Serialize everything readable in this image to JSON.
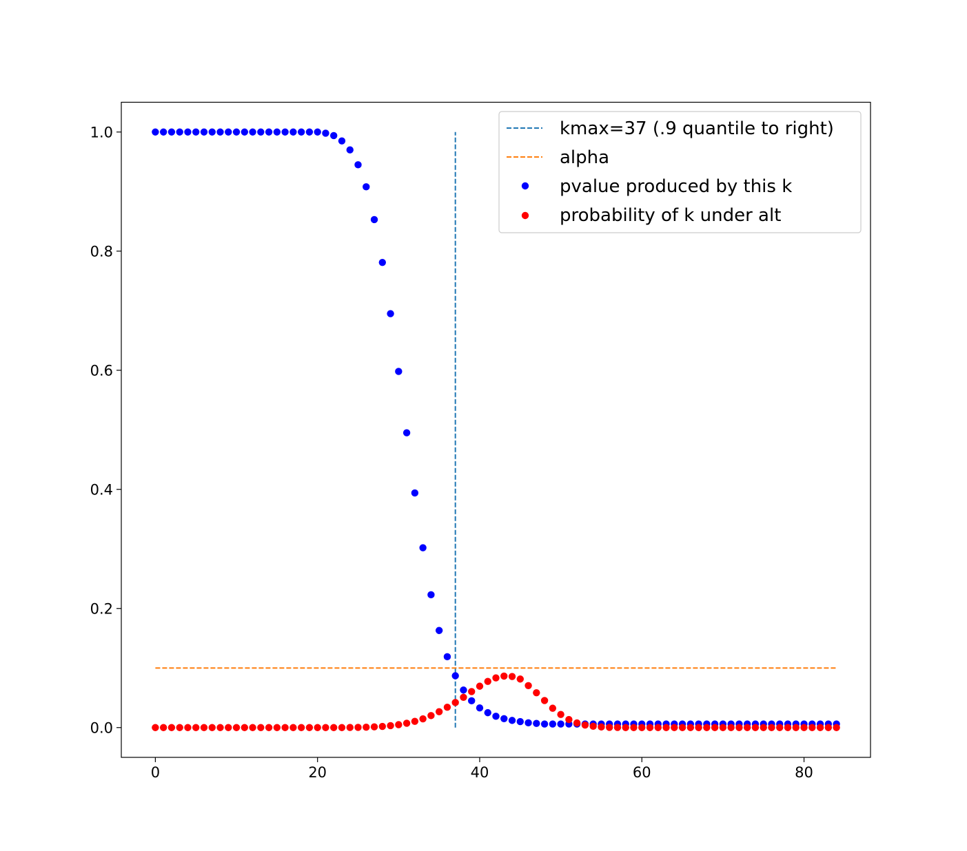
{
  "chart_data": {
    "type": "scatter",
    "title": "",
    "xlabel": "",
    "ylabel": "",
    "xlim": [
      -4.2,
      88.2
    ],
    "ylim": [
      -0.05,
      1.05
    ],
    "x_ticks": [
      0,
      20,
      40,
      60,
      80
    ],
    "x_tick_labels": [
      "0",
      "20",
      "40",
      "60",
      "80"
    ],
    "y_ticks": [
      0.0,
      0.2,
      0.4,
      0.6,
      0.8,
      1.0
    ],
    "y_tick_labels": [
      "0.0",
      "0.2",
      "0.4",
      "0.6",
      "0.8",
      "1.0"
    ],
    "grid": false,
    "legend_position": "upper-right",
    "lines": [
      {
        "name": "kmax=37 (.9 quantile to right)",
        "style": "dashed",
        "color": "#1f77b4",
        "x": [
          37,
          37
        ],
        "y": [
          0.0,
          1.0
        ]
      },
      {
        "name": "alpha",
        "style": "dashed",
        "color": "#ff7f0e",
        "x": [
          0,
          84
        ],
        "y": [
          0.1,
          0.1
        ]
      }
    ],
    "series": [
      {
        "name": "pvalue produced by this k",
        "color": "#0000ff",
        "x": [
          0,
          1,
          2,
          3,
          4,
          5,
          6,
          7,
          8,
          9,
          10,
          11,
          12,
          13,
          14,
          15,
          16,
          17,
          18,
          19,
          20,
          21,
          22,
          23,
          24,
          25,
          26,
          27,
          28,
          29,
          30,
          31,
          32,
          33,
          34,
          35,
          36,
          37,
          38,
          39,
          40,
          41,
          42,
          43,
          44,
          45,
          46,
          47,
          48,
          49,
          50,
          51,
          52,
          53,
          54,
          55,
          56,
          57,
          58,
          59,
          60,
          61,
          62,
          63,
          64,
          65,
          66,
          67,
          68,
          69,
          70,
          71,
          72,
          73,
          74,
          75,
          76,
          77,
          78,
          79,
          80,
          81,
          82,
          83,
          84
        ],
        "y": [
          1.0,
          1.0,
          1.0,
          1.0,
          1.0,
          1.0,
          1.0,
          1.0,
          1.0,
          1.0,
          1.0,
          1.0,
          1.0,
          1.0,
          1.0,
          1.0,
          1.0,
          1.0,
          1.0,
          1.0,
          1.0,
          0.998,
          0.994,
          0.985,
          0.97,
          0.945,
          0.908,
          0.853,
          0.781,
          0.695,
          0.598,
          0.495,
          0.394,
          0.302,
          0.223,
          0.163,
          0.119,
          0.087,
          0.063,
          0.045,
          0.033,
          0.025,
          0.019,
          0.015,
          0.012,
          0.01,
          0.008,
          0.007,
          0.006,
          0.006,
          0.006,
          0.006,
          0.006,
          0.006,
          0.006,
          0.006,
          0.006,
          0.006,
          0.006,
          0.006,
          0.006,
          0.006,
          0.006,
          0.006,
          0.006,
          0.006,
          0.006,
          0.006,
          0.006,
          0.006,
          0.006,
          0.006,
          0.006,
          0.006,
          0.006,
          0.006,
          0.006,
          0.006,
          0.006,
          0.006,
          0.006,
          0.006,
          0.006,
          0.006,
          0.006
        ]
      },
      {
        "name": "probability of k under alt",
        "color": "#ff0000",
        "x": [
          0,
          1,
          2,
          3,
          4,
          5,
          6,
          7,
          8,
          9,
          10,
          11,
          12,
          13,
          14,
          15,
          16,
          17,
          18,
          19,
          20,
          21,
          22,
          23,
          24,
          25,
          26,
          27,
          28,
          29,
          30,
          31,
          32,
          33,
          34,
          35,
          36,
          37,
          38,
          39,
          40,
          41,
          42,
          43,
          44,
          45,
          46,
          47,
          48,
          49,
          50,
          51,
          52,
          53,
          54,
          55,
          56,
          57,
          58,
          59,
          60,
          61,
          62,
          63,
          64,
          65,
          66,
          67,
          68,
          69,
          70,
          71,
          72,
          73,
          74,
          75,
          76,
          77,
          78,
          79,
          80,
          81,
          82,
          83,
          84
        ],
        "y": [
          0,
          0,
          0,
          0,
          0,
          0,
          0,
          0,
          0,
          0,
          0,
          0,
          0,
          0,
          0,
          0,
          0,
          0,
          0,
          0,
          0,
          0,
          0,
          0,
          0.0002,
          0.0004,
          0.0007,
          0.0012,
          0.002,
          0.0032,
          0.0049,
          0.0073,
          0.0105,
          0.0147,
          0.0201,
          0.0267,
          0.0342,
          0.0421,
          0.0508,
          0.0605,
          0.0695,
          0.0775,
          0.0835,
          0.0865,
          0.0858,
          0.0815,
          0.0705,
          0.0585,
          0.0455,
          0.0325,
          0.022,
          0.0135,
          0.0078,
          0.0043,
          0.0022,
          0.001,
          0.0004,
          0.0002,
          0,
          0,
          0,
          0,
          0,
          0,
          0,
          0,
          0,
          0,
          0,
          0,
          0,
          0,
          0,
          0,
          0,
          0,
          0,
          0,
          0,
          0,
          0,
          0,
          0,
          0,
          0
        ]
      }
    ]
  }
}
